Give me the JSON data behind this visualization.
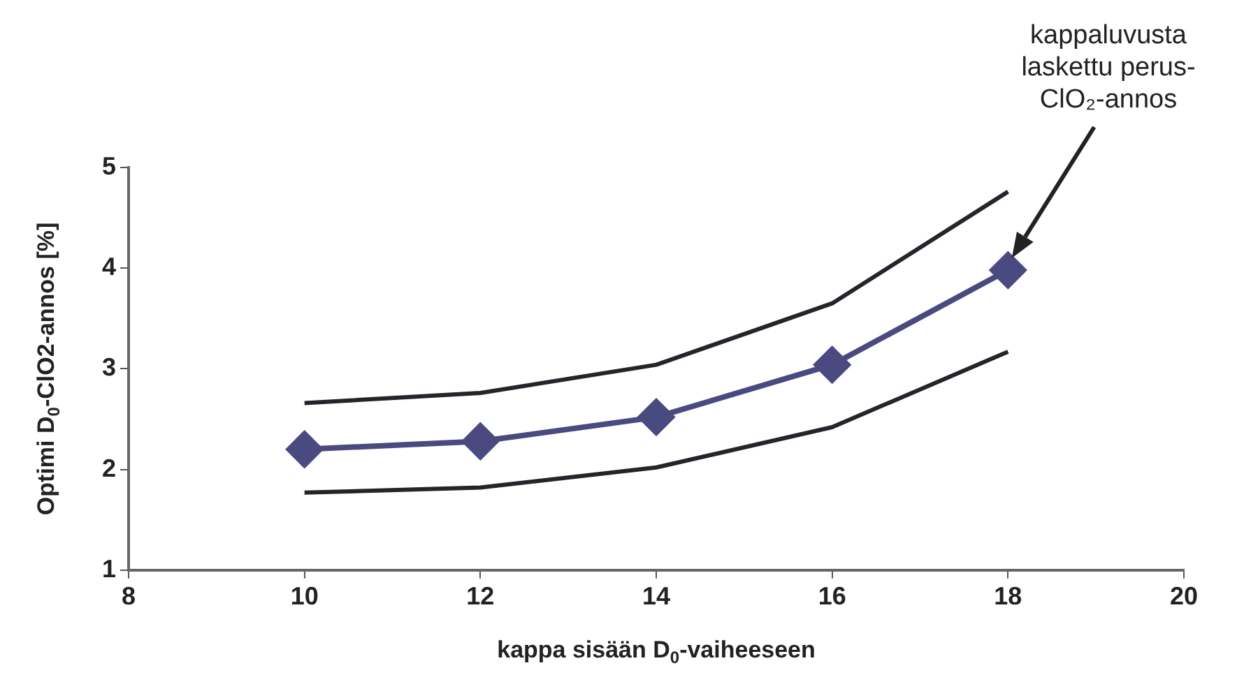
{
  "chart_data": {
    "type": "line",
    "xlabel": "kappa sisään D$_{0}$-vaiheeseen",
    "ylabel": "Optimi D$_{0}$-ClO2-annos [%]",
    "x": [
      10,
      12,
      14,
      16,
      18
    ],
    "series": [
      {
        "color": "#22252a",
        "values": [
          2.66,
          2.76,
          3.04,
          3.65,
          4.76
        ],
        "marker": "none"
      },
      {
        "color": "#4b4a80",
        "values": [
          2.2,
          2.28,
          2.52,
          3.04,
          3.98
        ],
        "marker": "diamond"
      },
      {
        "color": "#22252a",
        "values": [
          1.77,
          1.82,
          2.02,
          2.42,
          3.17
        ],
        "marker": "none"
      }
    ],
    "xlim": [
      8,
      20
    ],
    "xticks": [
      8,
      10,
      12,
      14,
      16,
      18,
      20
    ],
    "ylim": [
      1,
      5
    ],
    "yticks": [
      1,
      2,
      3,
      4,
      5
    ],
    "grid": false,
    "legend": false,
    "line_style": "solid",
    "annotations": [
      "kappaluvusta laskettu perus-ClO₂-annos"
    ]
  }
}
